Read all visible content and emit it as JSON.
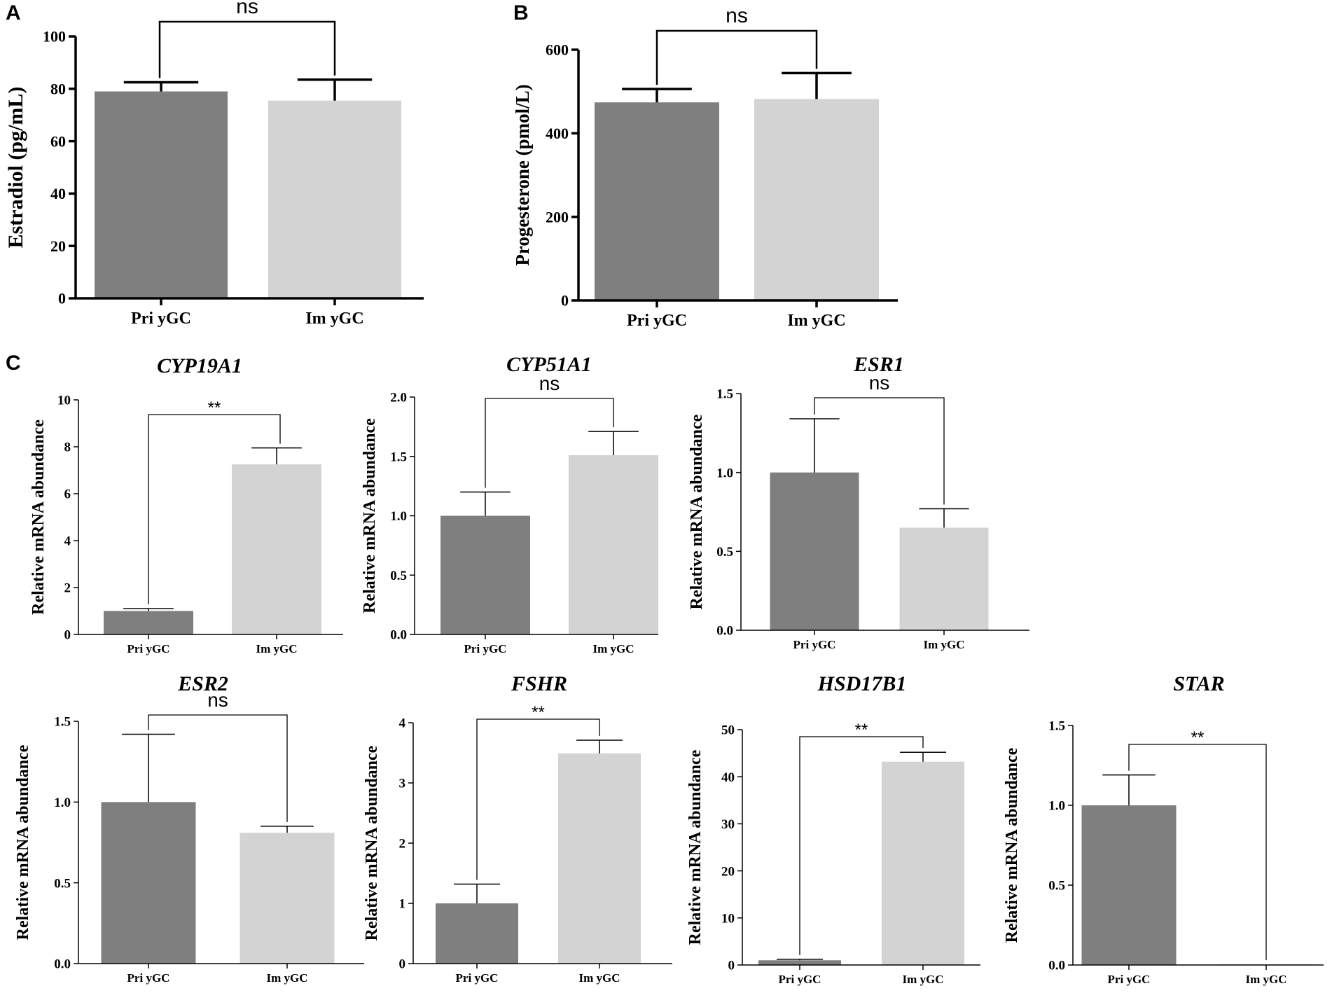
{
  "colors": {
    "pri": "#7f7f7f",
    "im": "#d3d3d3",
    "axis": "#000000"
  },
  "panels": {
    "a": "A",
    "b": "B",
    "c": "C"
  },
  "chart_data": [
    {
      "id": "a",
      "type": "bar",
      "title": "",
      "ylabel": "Estradiol (pg/mL)",
      "categories": [
        "Pri yGC",
        "Im yGC"
      ],
      "values": [
        79,
        75.5
      ],
      "errors": [
        3.5,
        8
      ],
      "ylim": [
        0,
        100
      ],
      "ticks": [
        "0",
        "20",
        "40",
        "60",
        "80",
        "100"
      ],
      "sig": "ns"
    },
    {
      "id": "b",
      "type": "bar",
      "title": "",
      "ylabel": "Progesterone (pmol/L)",
      "categories": [
        "Pri yGC",
        "Im yGC"
      ],
      "values": [
        474,
        482
      ],
      "errors": [
        32,
        62
      ],
      "ylim": [
        0,
        600
      ],
      "ticks": [
        "0",
        "200",
        "400",
        "600"
      ],
      "sig": "ns"
    },
    {
      "id": "c1",
      "type": "bar",
      "title": "CYP19A1",
      "ylabel": "Relative mRNA abundance",
      "categories": [
        "Pri yGC",
        "Im yGC"
      ],
      "values": [
        1,
        7.25
      ],
      "errors": [
        0.1,
        0.7
      ],
      "ylim": [
        0,
        10
      ],
      "ticks": [
        "0",
        "2",
        "4",
        "6",
        "8",
        "10"
      ],
      "sig": "**"
    },
    {
      "id": "c2",
      "type": "bar",
      "title": "CYP51A1",
      "ylabel": "Relative mRNA abundance",
      "categories": [
        "Pri yGC",
        "Im yGC"
      ],
      "values": [
        1,
        1.51
      ],
      "errors": [
        0.2,
        0.2
      ],
      "ylim": [
        0,
        2
      ],
      "ticks": [
        "0.0",
        "0.5",
        "1.0",
        "1.5",
        "2.0"
      ],
      "sig": "ns"
    },
    {
      "id": "c3",
      "type": "bar",
      "title": "ESR1",
      "ylabel": "Relative mRNA abundance",
      "categories": [
        "Pri yGC",
        "Im yGC"
      ],
      "values": [
        1,
        0.65
      ],
      "errors": [
        0.34,
        0.12
      ],
      "ylim": [
        0,
        1.5
      ],
      "ticks": [
        "0.0",
        "0.5",
        "1.0",
        "1.5"
      ],
      "sig": "ns"
    },
    {
      "id": "c4",
      "type": "bar",
      "title": "ESR2",
      "ylabel": "Relative mRNA abundance",
      "categories": [
        "Pri yGC",
        "Im yGC"
      ],
      "values": [
        1,
        0.81
      ],
      "errors": [
        0.42,
        0.04
      ],
      "ylim": [
        0,
        1.5
      ],
      "ticks": [
        "0.0",
        "0.5",
        "1.0",
        "1.5"
      ],
      "sig": "ns"
    },
    {
      "id": "c5",
      "type": "bar",
      "title": "FSHR",
      "ylabel": "Relative mRNA abundance",
      "categories": [
        "Pri yGC",
        "Im yGC"
      ],
      "values": [
        1,
        3.49
      ],
      "errors": [
        0.32,
        0.22
      ],
      "ylim": [
        0,
        4
      ],
      "ticks": [
        "0",
        "1",
        "2",
        "3",
        "4"
      ],
      "sig": "**"
    },
    {
      "id": "c6",
      "type": "bar",
      "title": "HSD17B1",
      "ylabel": "Relative mRNA abundance",
      "categories": [
        "Pri yGC",
        "Im yGC"
      ],
      "values": [
        1,
        43.2
      ],
      "errors": [
        0.2,
        2
      ],
      "ylim": [
        0,
        50
      ],
      "ticks": [
        "0",
        "10",
        "20",
        "30",
        "40",
        "50"
      ],
      "sig": "**"
    },
    {
      "id": "c7",
      "type": "bar",
      "title": "STAR",
      "ylabel": "Relative mRNA abundance",
      "categories": [
        "Pri yGC",
        "Im yGC"
      ],
      "values": [
        1,
        0.005
      ],
      "errors": [
        0.19,
        0
      ],
      "ylim": [
        0,
        1.5
      ],
      "ticks": [
        "0.0",
        "0.5",
        "1.0",
        "1.5"
      ],
      "sig": "**"
    }
  ]
}
